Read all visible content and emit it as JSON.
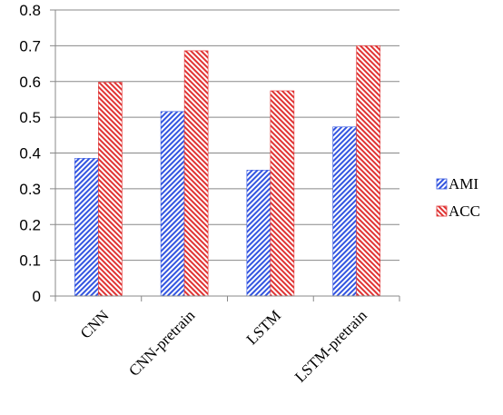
{
  "chart_data": {
    "type": "bar",
    "title": "",
    "xlabel": "",
    "ylabel": "",
    "categories": [
      "CNN",
      "CNN-pretrain",
      "LSTM",
      "LSTM-pretrain"
    ],
    "series": [
      {
        "name": "AMI",
        "values": [
          0.385,
          0.516,
          0.352,
          0.473
        ],
        "color": "#3355e0",
        "pattern": "diagonal-hatch"
      },
      {
        "name": "ACC",
        "values": [
          0.598,
          0.686,
          0.574,
          0.7
        ],
        "color": "#e03333",
        "pattern": "diagonal-hatch"
      }
    ],
    "ylim": [
      0,
      0.8
    ],
    "yticks": [
      "0",
      "0.1",
      "0.2",
      "0.3",
      "0.4",
      "0.5",
      "0.6",
      "0.7",
      "0.8"
    ],
    "grid": true,
    "legend_position": "right"
  }
}
